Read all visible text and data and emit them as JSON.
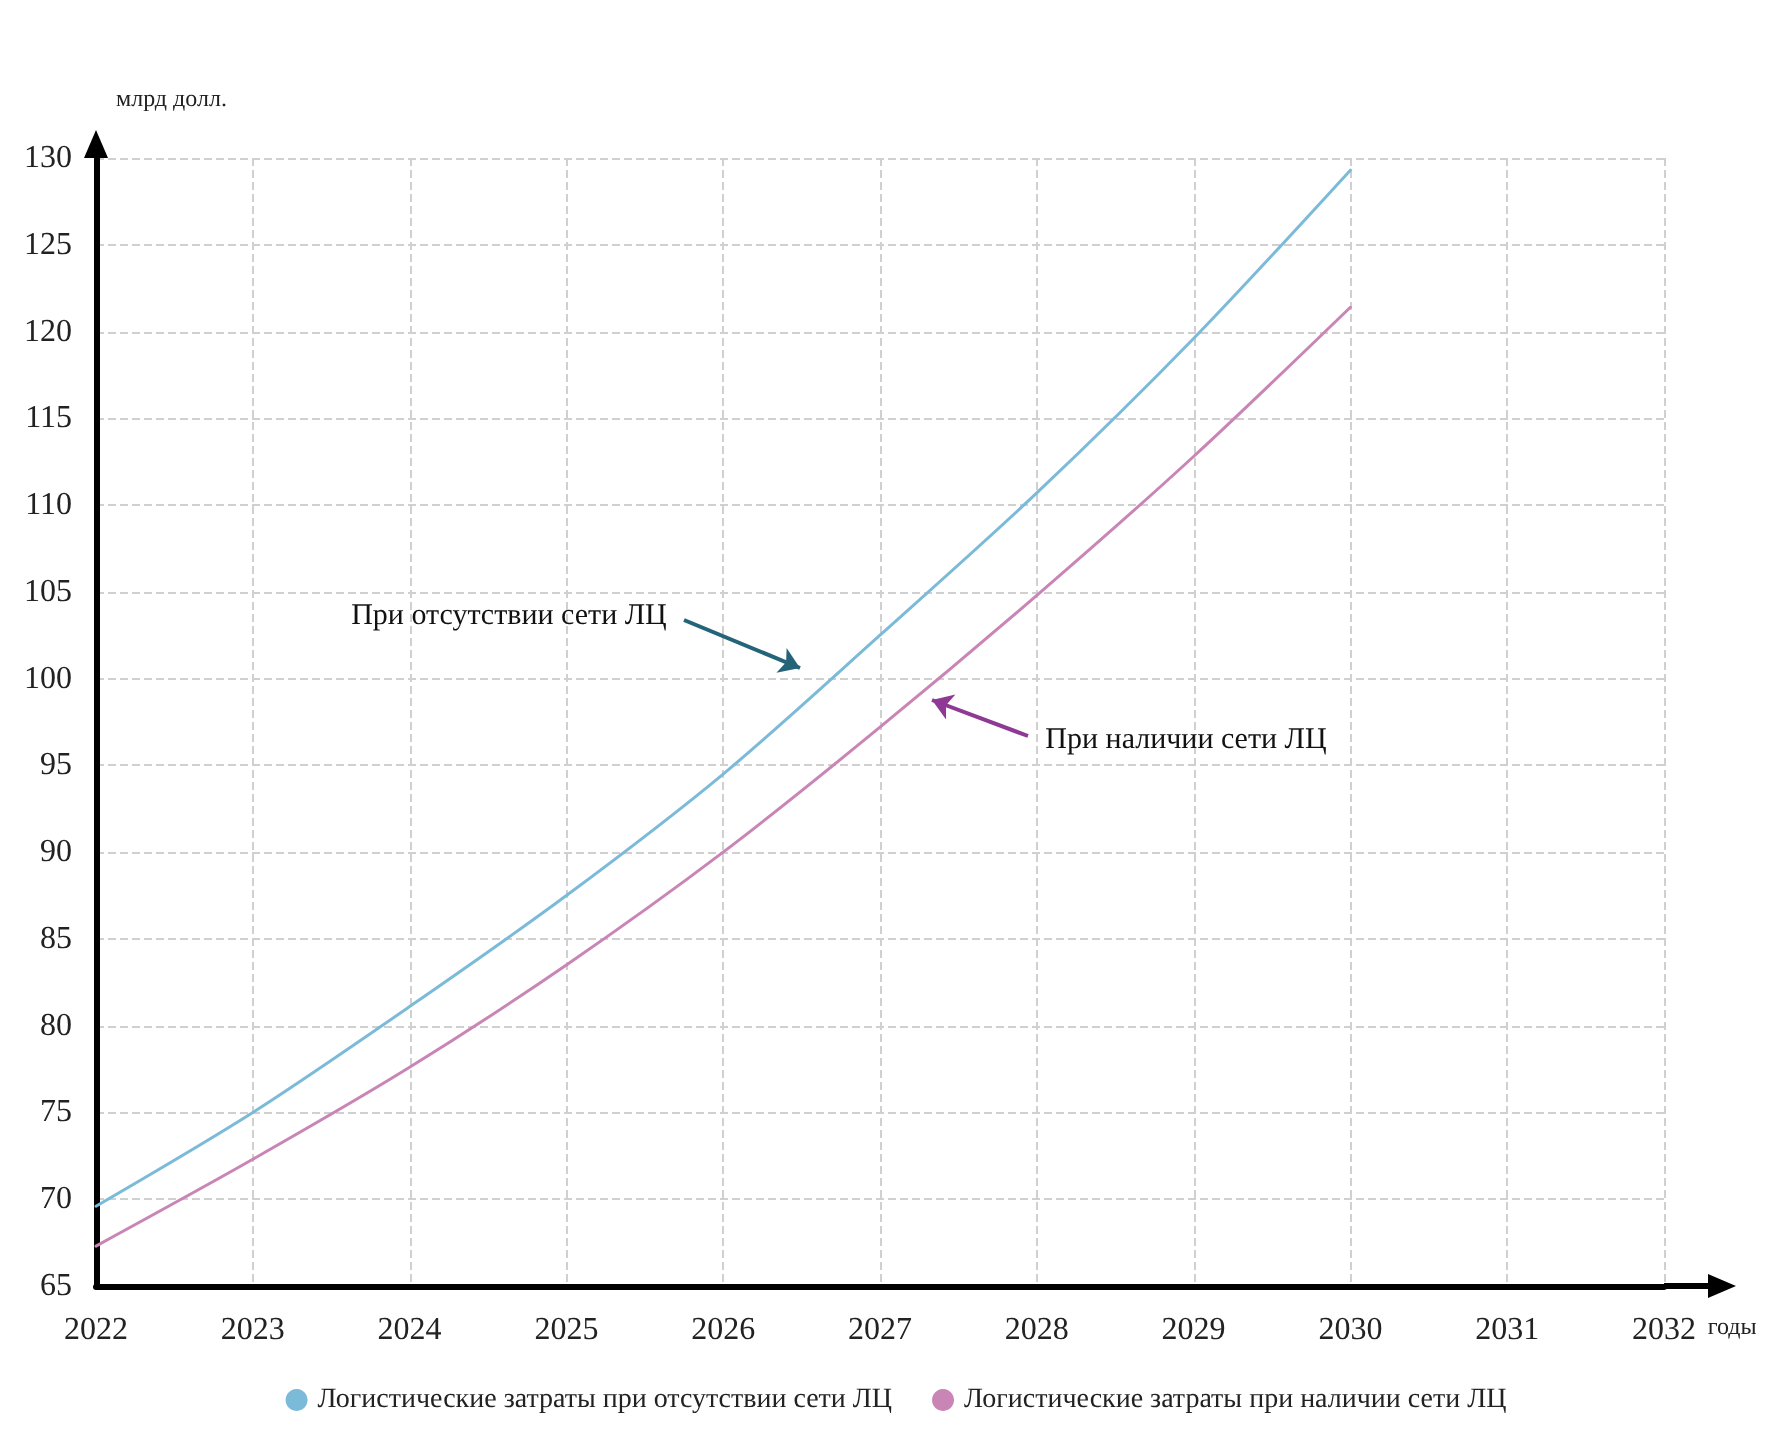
{
  "chart_data": {
    "type": "line",
    "xlabel": "годы",
    "ylabel": "млрд долл.",
    "x": [
      2022,
      2023,
      2024,
      2025,
      2026,
      2027,
      2028,
      2029,
      2030
    ],
    "series": [
      {
        "name": "Логистические затраты при отсутствии сети ЛЦ",
        "color": "#7bbad9",
        "values": [
          69.6,
          75,
          81.1,
          87.5,
          94.5,
          102.5,
          110.7,
          119.6,
          129.3
        ]
      },
      {
        "name": "Логистические затраты при наличии сети ЛЦ",
        "color": "#c985b5",
        "values": [
          67.3,
          72.3,
          77.6,
          83.5,
          90,
          97.2,
          104.8,
          112.8,
          121.4
        ]
      }
    ],
    "annotations": [
      "При отсутствии сети ЛЦ",
      "При наличии сети ЛЦ"
    ],
    "xlim": [
      2022,
      2032
    ],
    "xticks": [
      2022,
      2023,
      2024,
      2025,
      2026,
      2027,
      2028,
      2029,
      2030,
      2031,
      2032
    ],
    "ylim": [
      65,
      130
    ],
    "yticks": [
      65,
      70,
      75,
      80,
      85,
      90,
      95,
      100,
      105,
      110,
      115,
      120,
      125,
      130
    ],
    "grid": true,
    "legend": "bottom",
    "marker": "none",
    "line_style": "solid"
  }
}
